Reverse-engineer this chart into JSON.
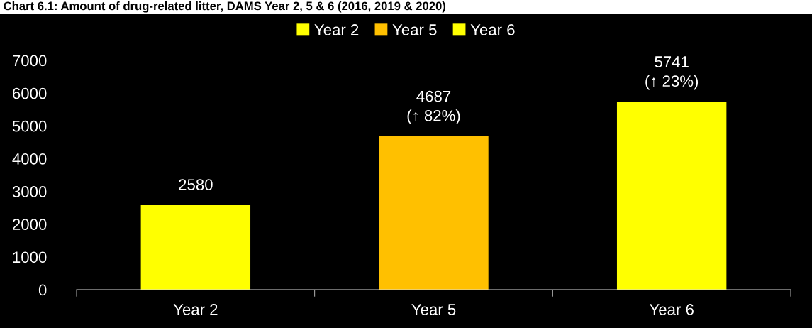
{
  "chart_data": {
    "type": "bar",
    "title": "Chart 6.1: Amount of drug-related litter, DAMS Year 2, 5 & 6 (2016, 2019 & 2020)",
    "categories": [
      "Year 2",
      "Year 5",
      "Year 6"
    ],
    "series": [
      {
        "name": "Year 2",
        "color": "#ffff00",
        "values": [
          2580,
          null,
          null
        ],
        "value_labels": [
          "2580",
          null,
          null
        ]
      },
      {
        "name": "Year 5",
        "color": "#ffc000",
        "values": [
          null,
          4687,
          null
        ],
        "value_labels": [
          null,
          "4687\n(↑ 82%)",
          null
        ]
      },
      {
        "name": "Year 6",
        "color": "#ffff00",
        "values": [
          null,
          null,
          5741
        ],
        "value_labels": [
          null,
          null,
          "5741\n(↑ 23%)"
        ]
      }
    ],
    "ylim": [
      0,
      7000
    ],
    "yticks": [
      0,
      1000,
      2000,
      3000,
      4000,
      5000,
      6000,
      7000
    ],
    "grid": false,
    "legend": "top"
  }
}
